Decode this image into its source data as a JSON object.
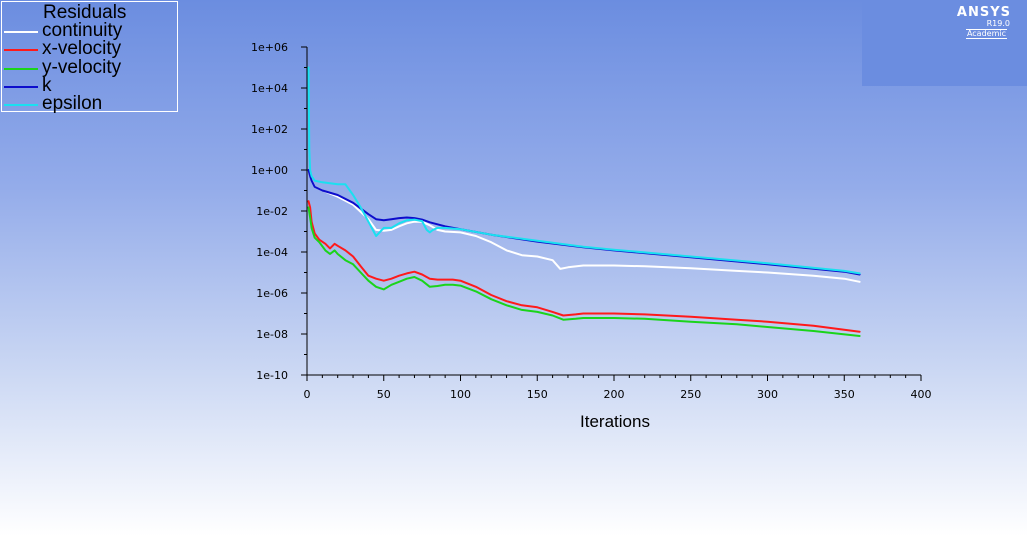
{
  "chart_data": {
    "type": "line",
    "title": "",
    "xlabel": "Iterations",
    "ylabel": "",
    "yscale": "log",
    "xlim": [
      0,
      400
    ],
    "ylim": [
      1e-10,
      1000000.0
    ],
    "x_ticks": [
      "0",
      "50",
      "100",
      "150",
      "200",
      "250",
      "300",
      "350",
      "400"
    ],
    "y_ticks": [
      "1e-10",
      "1e-08",
      "1e-06",
      "1e-04",
      "1e-02",
      "1e+00",
      "1e+02",
      "1e+04",
      "1e+06"
    ],
    "legend_title": "Residuals",
    "legend_position": "top-left",
    "grid": false,
    "series": [
      {
        "name": "continuity",
        "color": "#ffffff",
        "x": [
          1,
          2,
          3,
          5,
          10,
          20,
          30,
          40,
          45,
          50,
          55,
          60,
          65,
          70,
          75,
          80,
          85,
          90,
          100,
          110,
          120,
          130,
          140,
          150,
          160,
          165,
          170,
          180,
          200,
          220,
          250,
          280,
          300,
          330,
          350,
          360
        ],
        "y": [
          1,
          0.5,
          0.3,
          0.15,
          0.1,
          0.05,
          0.02,
          0.004,
          0.0012,
          0.0011,
          0.0012,
          0.0018,
          0.0025,
          0.003,
          0.003,
          0.002,
          0.0012,
          0.001,
          0.0009,
          0.0006,
          0.0003,
          0.00012,
          7e-05,
          6e-05,
          4e-05,
          1.5e-05,
          1.8e-05,
          2.2e-05,
          2.2e-05,
          2e-05,
          1.6e-05,
          1.2e-05,
          1e-05,
          7e-06,
          5e-06,
          3.5e-06
        ]
      },
      {
        "name": "x-velocity",
        "color": "#ff1a1a",
        "x": [
          1,
          2,
          3,
          5,
          8,
          12,
          15,
          18,
          20,
          25,
          30,
          35,
          40,
          45,
          50,
          55,
          60,
          65,
          70,
          75,
          80,
          85,
          90,
          95,
          100,
          110,
          120,
          130,
          140,
          150,
          160,
          167,
          175,
          180,
          200,
          220,
          250,
          280,
          300,
          330,
          360
        ],
        "y": [
          0.03,
          0.015,
          0.003,
          0.0008,
          0.0004,
          0.00025,
          0.00015,
          0.00025,
          0.0002,
          0.00012,
          6e-05,
          2e-05,
          7e-06,
          5e-06,
          4e-06,
          5e-06,
          7e-06,
          9e-06,
          1.1e-05,
          8e-06,
          5e-06,
          4.5e-06,
          4.5e-06,
          4.5e-06,
          4e-06,
          2e-06,
          8e-07,
          4e-07,
          2.5e-07,
          2e-07,
          1.2e-07,
          8e-08,
          9e-08,
          1e-07,
          1e-07,
          9e-08,
          7e-08,
          5e-08,
          4e-08,
          2.5e-08,
          1.3e-08
        ]
      },
      {
        "name": "y-velocity",
        "color": "#1ad41a",
        "x": [
          1,
          2,
          3,
          5,
          8,
          12,
          15,
          18,
          20,
          25,
          30,
          35,
          40,
          45,
          50,
          55,
          60,
          65,
          70,
          75,
          80,
          85,
          90,
          95,
          100,
          110,
          120,
          130,
          140,
          150,
          160,
          167,
          175,
          180,
          200,
          220,
          250,
          280,
          300,
          330,
          360
        ],
        "y": [
          0.015,
          0.005,
          0.0015,
          0.0005,
          0.0003,
          0.00012,
          8e-05,
          0.00012,
          8e-05,
          4e-05,
          2.5e-05,
          1e-05,
          4e-06,
          2e-06,
          1.5e-06,
          2.5e-06,
          3.5e-06,
          5e-06,
          6e-06,
          4e-06,
          2e-06,
          2.2e-06,
          2.5e-06,
          2.5e-06,
          2.3e-06,
          1.2e-06,
          5e-07,
          2.5e-07,
          1.5e-07,
          1.2e-07,
          8e-08,
          5e-08,
          5.5e-08,
          6e-08,
          6e-08,
          5.5e-08,
          4e-08,
          3e-08,
          2.2e-08,
          1.4e-08,
          8e-09
        ]
      },
      {
        "name": "k",
        "color": "#0d0dcc",
        "x": [
          1,
          2,
          3,
          5,
          10,
          20,
          30,
          40,
          45,
          50,
          55,
          60,
          65,
          70,
          75,
          80,
          90,
          100,
          120,
          150,
          180,
          200,
          250,
          300,
          350,
          360
        ],
        "y": [
          1,
          0.5,
          0.3,
          0.15,
          0.1,
          0.06,
          0.025,
          0.007,
          0.004,
          0.0035,
          0.004,
          0.0045,
          0.0048,
          0.0045,
          0.0038,
          0.0028,
          0.0018,
          0.0013,
          0.0007,
          0.00032,
          0.00017,
          0.00012,
          5.5e-05,
          2.5e-05,
          1.1e-05,
          8e-06
        ]
      },
      {
        "name": "epsilon",
        "color": "#1ae0f0",
        "x": [
          1,
          1.5,
          2,
          3,
          5,
          10,
          20,
          25,
          30,
          35,
          40,
          45,
          50,
          55,
          60,
          65,
          70,
          75,
          78,
          80,
          82,
          85,
          90,
          100,
          120,
          150,
          180,
          200,
          250,
          300,
          350,
          360
        ],
        "y": [
          100000,
          10,
          1,
          0.5,
          0.3,
          0.25,
          0.2,
          0.2,
          0.06,
          0.015,
          0.003,
          0.0006,
          0.0015,
          0.0015,
          0.0025,
          0.0035,
          0.0038,
          0.0032,
          0.0012,
          0.0009,
          0.0012,
          0.0015,
          0.0015,
          0.0013,
          0.0007,
          0.00035,
          0.00018,
          0.00013,
          6e-05,
          2.8e-05,
          1.2e-05,
          9e-06
        ]
      }
    ]
  },
  "logo": {
    "brand": "ANSYS",
    "version": "R19.0",
    "edition": "Academic"
  }
}
